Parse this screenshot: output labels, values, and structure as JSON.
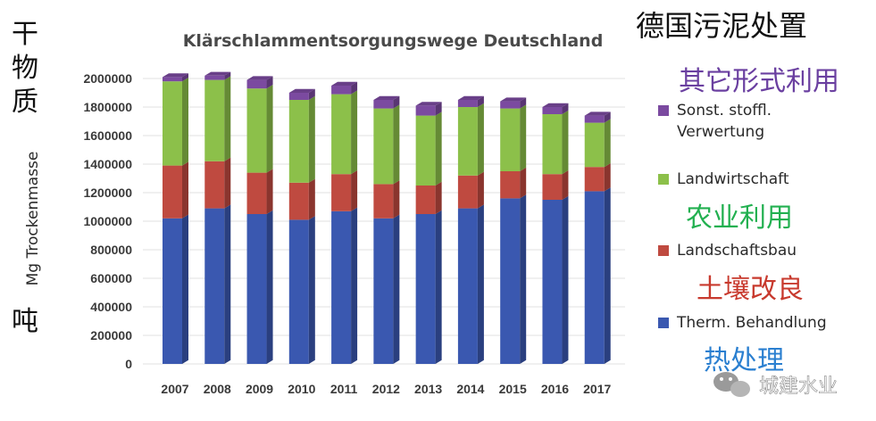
{
  "overlay": {
    "top_right_title": "德国污泥处置",
    "left_unit_label": "干物质",
    "left_bottom_unit": "吨",
    "legend_cn": [
      "其它形式利用",
      "农业利用",
      "土壤改良",
      "热处理"
    ],
    "watermark": "城建水业"
  },
  "colors": {
    "therm": "#3a58b0",
    "landschaft": "#bf4a40",
    "landwirt": "#8cc04a",
    "sonst": "#7b4aa0",
    "cn_sonst": "#6a3fa0",
    "cn_landwirt": "#22b050",
    "cn_landschaft": "#c83a2e",
    "cn_therm": "#2a7fd0"
  },
  "chart_data": {
    "type": "bar",
    "stacked": true,
    "title": "Klärschlammentsorgungswege Deutschland",
    "ylabel": "Mg Trockenmasse",
    "xlabel": "",
    "ylim": [
      0,
      2000000
    ],
    "yticks": [
      "0",
      "200000",
      "400000",
      "600000",
      "800000",
      "1000000",
      "1200000",
      "1400000",
      "1600000",
      "1800000",
      "2000000"
    ],
    "categories": [
      "2007",
      "2008",
      "2009",
      "2010",
      "2011",
      "2012",
      "2013",
      "2014",
      "2015",
      "2016",
      "2017"
    ],
    "legend_position": "right",
    "series": [
      {
        "name": "Therm. Behandlung",
        "color_key": "therm",
        "values": [
          1020000,
          1090000,
          1050000,
          1010000,
          1070000,
          1020000,
          1050000,
          1090000,
          1160000,
          1150000,
          1210000
        ]
      },
      {
        "name": "Landschaftsbau",
        "color_key": "landschaft",
        "values": [
          370000,
          330000,
          290000,
          260000,
          260000,
          240000,
          200000,
          230000,
          190000,
          180000,
          170000
        ]
      },
      {
        "name": "Landwirtschaft",
        "color_key": "landwirt",
        "values": [
          590000,
          570000,
          590000,
          580000,
          560000,
          530000,
          490000,
          480000,
          440000,
          420000,
          310000
        ]
      },
      {
        "name": "Sonst. stoffl.\nVerwertung",
        "color_key": "sonst",
        "values": [
          30000,
          30000,
          60000,
          50000,
          60000,
          60000,
          70000,
          50000,
          50000,
          50000,
          50000
        ]
      }
    ]
  }
}
